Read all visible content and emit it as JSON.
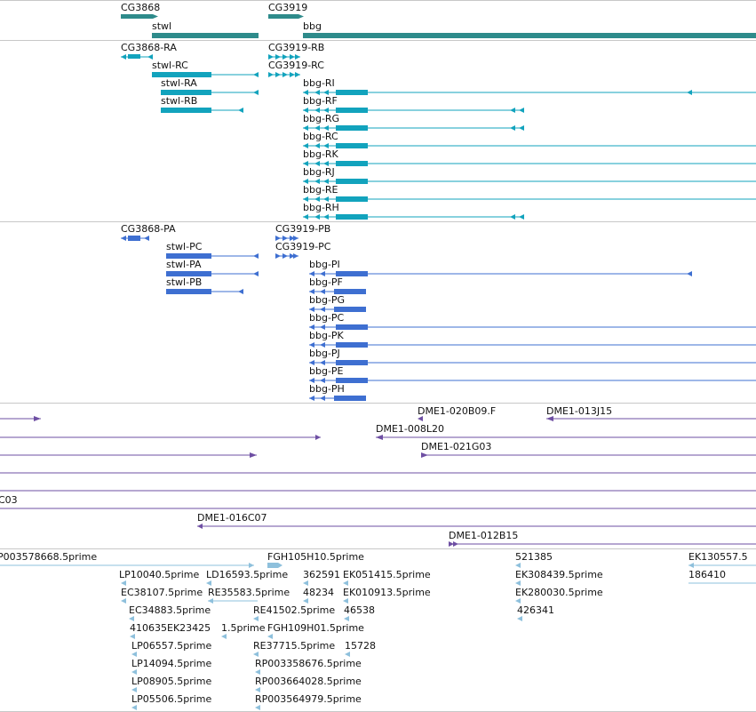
{
  "colors": {
    "gene": "#2e8b8b",
    "transcript": "#12a3bd",
    "protein": "#3e6fd1",
    "clone": "#6e4fa3",
    "est": "#8ec0dc",
    "divider": "#c8c8c8",
    "label": "#111111"
  },
  "tracks": {
    "genes": [
      {
        "label": "CG3868",
        "color": "gene"
      },
      {
        "label": "stwl",
        "color": "gene"
      },
      {
        "label": "CG3919",
        "color": "gene"
      },
      {
        "label": "bbg",
        "color": "gene"
      }
    ],
    "transcripts": [
      {
        "label": "CG3868-RA"
      },
      {
        "label": "stwl-RC"
      },
      {
        "label": "stwl-RA"
      },
      {
        "label": "stwl-RB"
      },
      {
        "label": "CG3919-RB"
      },
      {
        "label": "CG3919-RC"
      },
      {
        "label": "bbg-RI"
      },
      {
        "label": "bbg-RF"
      },
      {
        "label": "bbg-RG"
      },
      {
        "label": "bbg-RC"
      },
      {
        "label": "bbg-RK"
      },
      {
        "label": "bbg-RJ"
      },
      {
        "label": "bbg-RE"
      },
      {
        "label": "bbg-RH"
      }
    ],
    "proteins": [
      {
        "label": "CG3868-PA"
      },
      {
        "label": "stwl-PC"
      },
      {
        "label": "stwl-PA"
      },
      {
        "label": "stwl-PB"
      },
      {
        "label": "CG3919-PB"
      },
      {
        "label": "CG3919-PC"
      },
      {
        "label": "bbg-PI"
      },
      {
        "label": "bbg-PF"
      },
      {
        "label": "bbg-PG"
      },
      {
        "label": "bbg-PC"
      },
      {
        "label": "bbg-PK"
      },
      {
        "label": "bbg-PJ"
      },
      {
        "label": "bbg-PE"
      },
      {
        "label": "bbg-PH"
      }
    ],
    "clones": [
      {
        "label": "DME1-020B09.F"
      },
      {
        "label": "DME1-013J15"
      },
      {
        "label": "DME1-008L20"
      },
      {
        "label": "DME1-021G03"
      },
      {
        "label": "C03"
      },
      {
        "label": "DME1-016C07"
      },
      {
        "label": "DME1-012B15"
      }
    ],
    "ests": [
      {
        "label": "P003578668.5prime"
      },
      {
        "label": "FGH105H10.5prime"
      },
      {
        "label": "521385"
      },
      {
        "label": "EK130557.5"
      },
      {
        "label": "LP10040.5prime"
      },
      {
        "label": "LD16593.5prime"
      },
      {
        "label": "362591"
      },
      {
        "label": "EK051415.5prime"
      },
      {
        "label": "EK308439.5prime"
      },
      {
        "label": "186410"
      },
      {
        "label": "EC38107.5prime"
      },
      {
        "label": "RE35583.5prime"
      },
      {
        "label": "48234"
      },
      {
        "label": "EK010913.5prime"
      },
      {
        "label": "EK280030.5prime"
      },
      {
        "label": "EC34883.5prime"
      },
      {
        "label": "RE41502.5prime"
      },
      {
        "label": "46538"
      },
      {
        "label": "426341"
      },
      {
        "label": "410635EK23425"
      },
      {
        "label": "1.5prime"
      },
      {
        "label": "FGH109H01.5prime"
      },
      {
        "label": "LP06557.5prime"
      },
      {
        "label": "RE37715.5prime"
      },
      {
        "label": "15728"
      },
      {
        "label": "LP14094.5prime"
      },
      {
        "label": "RP003358676.5prime"
      },
      {
        "label": "LP08905.5prime"
      },
      {
        "label": "RP003664028.5prime"
      },
      {
        "label": "LP05506.5prime"
      },
      {
        "label": "RP003564979.5prime"
      }
    ]
  }
}
